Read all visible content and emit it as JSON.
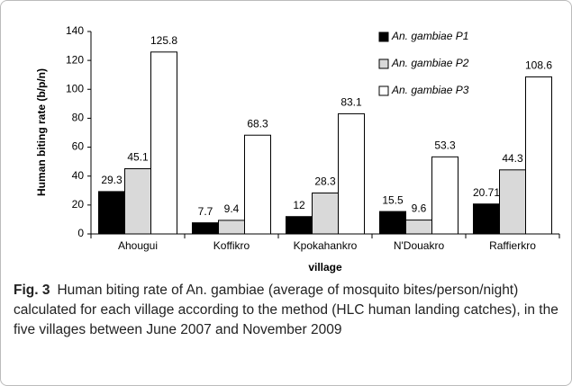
{
  "chart_data": {
    "type": "bar",
    "y_label": "Human biting rate (b/p/n)",
    "x_label": "village",
    "categories": [
      "Ahougui",
      "Koffikro",
      "Kpokahankro",
      "N'Douakro",
      "Raffierkro"
    ],
    "series": [
      {
        "name": "An. gambiae P1",
        "color": "#000000",
        "values": [
          29.3,
          7.7,
          12,
          15.5,
          20.71
        ]
      },
      {
        "name": "An. gambiae P2",
        "color": "#d9d9d9",
        "values": [
          45.1,
          9.4,
          28.3,
          9.6,
          44.3
        ]
      },
      {
        "name": "An. gambiae P3",
        "color": "#ffffff",
        "values": [
          125.8,
          68.3,
          83.1,
          53.3,
          108.6
        ]
      }
    ],
    "ylim": [
      0,
      140
    ],
    "yticks": [
      0,
      20,
      40,
      60,
      80,
      100,
      120,
      140
    ],
    "grid": false,
    "legend": "top-right"
  },
  "caption": {
    "label": "Fig. 3",
    "text": "Human biting rate of An. gambiae (average of mosquito bites/person/night) calculated for each village according to the method (HLC human landing catches), in the five villages between June 2007 and November 2009"
  }
}
